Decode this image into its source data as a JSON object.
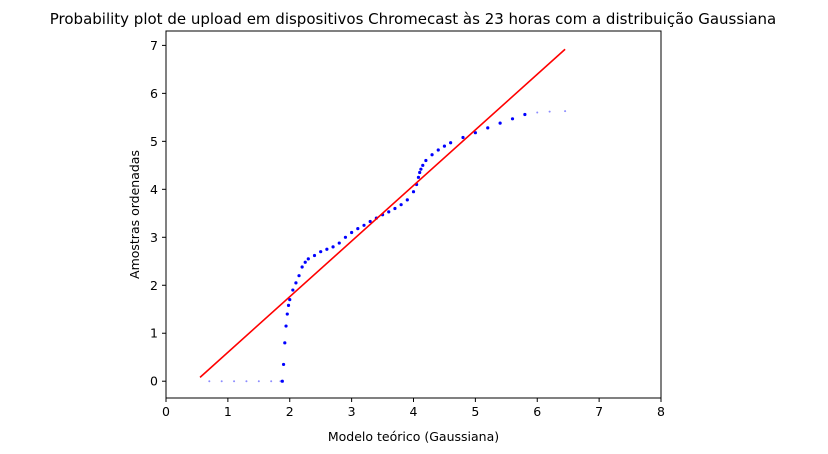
{
  "chart_data": {
    "type": "scatter",
    "title": "Probability plot de upload em dispositivos Chromecast às 23 horas com a distribuição Gaussiana",
    "xlabel": "Modelo teórico (Gaussiana)",
    "ylabel": "Amostras ordenadas",
    "xlim": [
      0,
      8
    ],
    "ylim": [
      -0.35,
      7.3
    ],
    "xticks": [
      "0",
      "1",
      "2",
      "3",
      "4",
      "5",
      "6",
      "7",
      "8"
    ],
    "yticks": [
      "0",
      "1",
      "2",
      "3",
      "4",
      "5",
      "6",
      "7"
    ],
    "grid": false,
    "legend": "none",
    "colors": {
      "points": "#0000ff",
      "fit_line": "#ff0000"
    },
    "series": [
      {
        "kind": "points",
        "color": "#0000ff",
        "x": [
          0.7,
          0.9,
          1.1,
          1.3,
          1.5,
          1.7,
          1.85,
          1.88,
          1.9,
          1.92,
          1.94,
          1.96,
          1.98,
          2.0,
          2.05,
          2.1,
          2.15,
          2.2,
          2.25,
          2.3,
          2.4,
          2.5,
          2.6,
          2.7,
          2.8,
          2.9,
          3.0,
          3.1,
          3.2,
          3.3,
          3.4,
          3.5,
          3.6,
          3.7,
          3.8,
          3.9,
          4.0,
          4.05,
          4.08,
          4.1,
          4.12,
          4.15,
          4.2,
          4.3,
          4.4,
          4.5,
          4.6,
          4.8,
          5.0,
          5.2,
          5.4,
          5.6,
          5.8,
          6.0,
          6.2,
          6.45
        ],
        "y": [
          0.0,
          0.0,
          0.0,
          0.0,
          0.0,
          0.0,
          0.0,
          0.0,
          0.35,
          0.8,
          1.15,
          1.4,
          1.58,
          1.7,
          1.9,
          2.05,
          2.2,
          2.38,
          2.48,
          2.55,
          2.62,
          2.7,
          2.75,
          2.8,
          2.88,
          3.0,
          3.1,
          3.18,
          3.25,
          3.33,
          3.4,
          3.47,
          3.53,
          3.6,
          3.68,
          3.78,
          3.95,
          4.1,
          4.25,
          4.35,
          4.42,
          4.5,
          4.6,
          4.72,
          4.82,
          4.9,
          4.97,
          5.08,
          5.18,
          5.28,
          5.38,
          5.47,
          5.56,
          5.6,
          5.62,
          5.63
        ]
      },
      {
        "kind": "fit-line",
        "color": "#ff0000",
        "x": [
          0.55,
          6.45
        ],
        "y": [
          0.08,
          6.92
        ]
      }
    ]
  }
}
